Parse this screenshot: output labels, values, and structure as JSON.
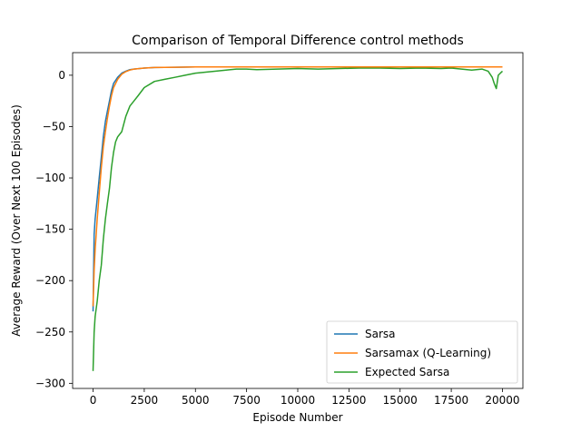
{
  "chart_data": {
    "type": "line",
    "title": "Comparison of Temporal Difference control methods",
    "xlabel": "Episode Number",
    "ylabel": "Average Reward (Over Next 100 Episodes)",
    "xlim": [
      -1000,
      21000
    ],
    "ylim": [
      -305,
      22
    ],
    "xticks": [
      0,
      2500,
      5000,
      7500,
      10000,
      12500,
      15000,
      17500,
      20000
    ],
    "yticks": [
      0,
      -50,
      -100,
      -150,
      -200,
      -250,
      -300
    ],
    "grid": false,
    "legend_position": "lower-right",
    "series": [
      {
        "name": "Sarsa",
        "color": "#1f77b4",
        "x": [
          0,
          50,
          100,
          200,
          300,
          400,
          500,
          600,
          700,
          800,
          900,
          1000,
          1200,
          1400,
          1600,
          1800,
          2000,
          2500,
          3000,
          4000,
          5000,
          6000,
          8000,
          10000,
          12000,
          14000,
          16000,
          18000,
          20000
        ],
        "y": [
          -230,
          -155,
          -140,
          -120,
          -100,
          -80,
          -60,
          -45,
          -35,
          -25,
          -15,
          -8,
          -2,
          2,
          4,
          5.5,
          6,
          7,
          7.5,
          7.8,
          8,
          8,
          8,
          8,
          8,
          8,
          8,
          8,
          8
        ]
      },
      {
        "name": "Sarsamax (Q-Learning)",
        "color": "#ff7f0e",
        "x": [
          0,
          50,
          100,
          200,
          300,
          400,
          500,
          600,
          700,
          800,
          900,
          1000,
          1200,
          1400,
          1600,
          1800,
          2000,
          2500,
          3000,
          4000,
          5000,
          6000,
          8000,
          10000,
          12000,
          14000,
          16000,
          18000,
          20000
        ],
        "y": [
          -225,
          -190,
          -170,
          -140,
          -115,
          -90,
          -70,
          -55,
          -42,
          -30,
          -20,
          -12,
          -4,
          1,
          3.5,
          5,
          6,
          7,
          7.5,
          7.8,
          8,
          8,
          8,
          8,
          8,
          8,
          8,
          8,
          8
        ]
      },
      {
        "name": "Expected Sarsa",
        "color": "#2ca02c",
        "x": [
          0,
          50,
          100,
          200,
          300,
          400,
          500,
          600,
          700,
          800,
          900,
          1000,
          1100,
          1200,
          1400,
          1600,
          1800,
          2000,
          2200,
          2500,
          3000,
          3500,
          4000,
          4500,
          5000,
          5500,
          6000,
          6500,
          7000,
          7500,
          8000,
          9000,
          10000,
          11000,
          12000,
          13000,
          14000,
          15000,
          16000,
          17000,
          17500,
          18000,
          18500,
          19000,
          19300,
          19500,
          19600,
          19700,
          19800,
          19900,
          20000
        ],
        "y": [
          -288,
          -250,
          -235,
          -220,
          -200,
          -185,
          -160,
          -140,
          -125,
          -110,
          -90,
          -75,
          -65,
          -60,
          -55,
          -40,
          -30,
          -25,
          -20,
          -12,
          -6,
          -4,
          -2,
          0,
          2,
          3,
          4,
          5,
          6,
          6,
          5.5,
          6,
          6.5,
          6,
          6.5,
          7,
          7,
          6.5,
          7,
          6.5,
          7,
          6,
          5,
          6,
          4,
          -2,
          -8,
          -13,
          0,
          2,
          4
        ]
      }
    ]
  }
}
